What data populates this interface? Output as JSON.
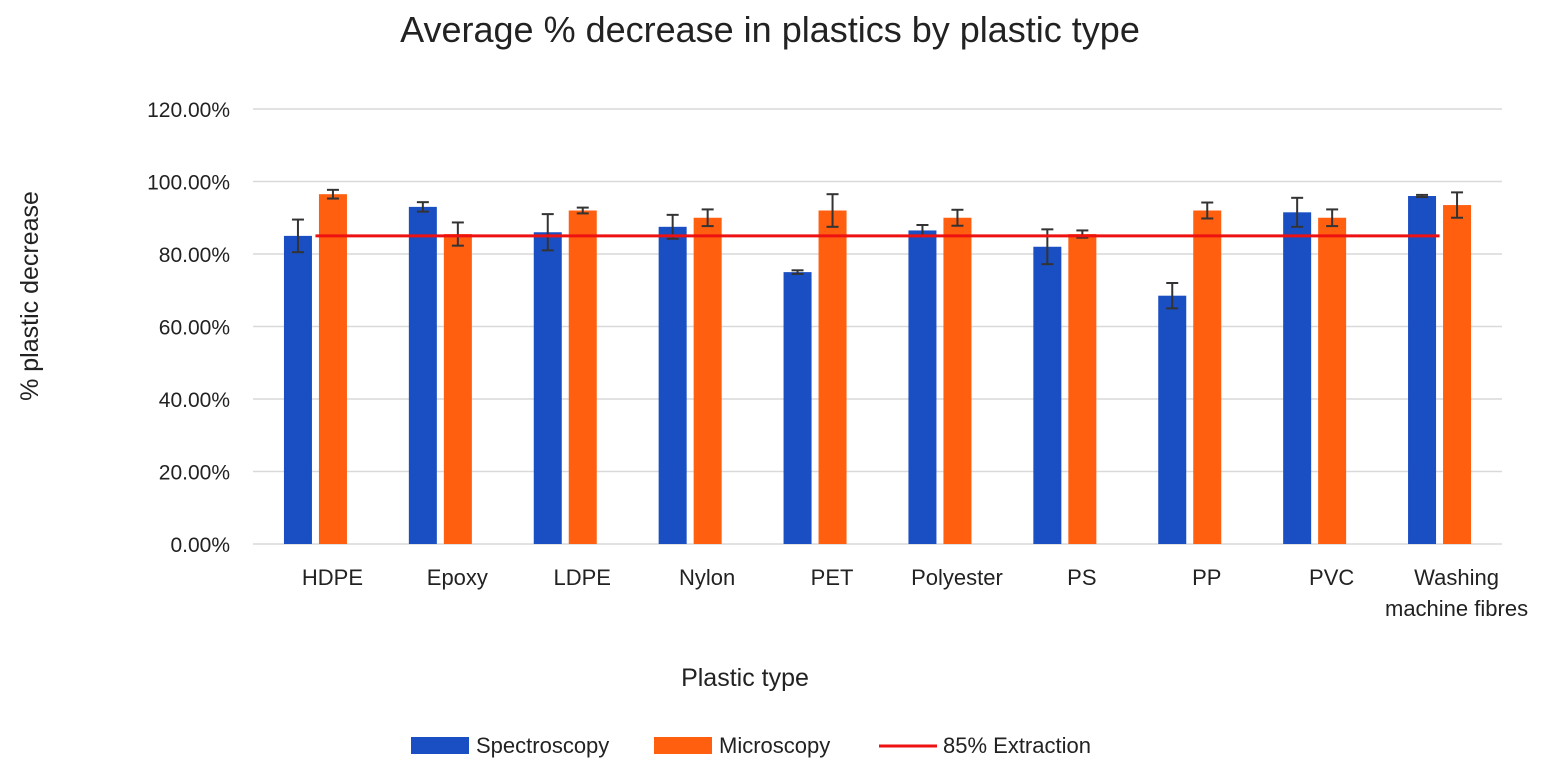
{
  "chart_data": {
    "type": "bar",
    "title": "Average % decrease in plastics by plastic type",
    "xlabel": "Plastic type",
    "ylabel": "% plastic decrease",
    "ylim": [
      0,
      1.2
    ],
    "yticks": [
      0,
      0.2,
      0.4,
      0.6,
      0.8,
      1.0,
      1.2
    ],
    "ytick_labels": [
      "0.00%",
      "20.00%",
      "40.00%",
      "60.00%",
      "80.00%",
      "100.00%",
      "120.00%"
    ],
    "categories": [
      [
        "HDPE"
      ],
      [
        "Epoxy"
      ],
      [
        "LDPE"
      ],
      [
        "Nylon"
      ],
      [
        "PET"
      ],
      [
        "Polyester"
      ],
      [
        "PS"
      ],
      [
        "PP"
      ],
      [
        "PVC"
      ],
      [
        "Washing",
        "machine fibres"
      ]
    ],
    "series": [
      {
        "name": "Spectroscopy",
        "color": "#1a4fc4",
        "values": [
          0.85,
          0.93,
          0.86,
          0.875,
          0.75,
          0.865,
          0.82,
          0.685,
          0.915,
          0.96
        ],
        "errors": [
          0.045,
          0.013,
          0.05,
          0.033,
          0.005,
          0.015,
          0.048,
          0.035,
          0.04,
          0.003
        ]
      },
      {
        "name": "Microscopy",
        "color": "#ff5f0f",
        "values": [
          0.965,
          0.855,
          0.92,
          0.9,
          0.92,
          0.9,
          0.855,
          0.92,
          0.9,
          0.935
        ],
        "errors": [
          0.012,
          0.032,
          0.008,
          0.023,
          0.045,
          0.022,
          0.01,
          0.022,
          0.023,
          0.035
        ]
      }
    ],
    "reference_line": {
      "name": "85% Extraction",
      "value": 0.85,
      "color": "#ee1111"
    },
    "grid": true,
    "legend_position": "bottom"
  }
}
